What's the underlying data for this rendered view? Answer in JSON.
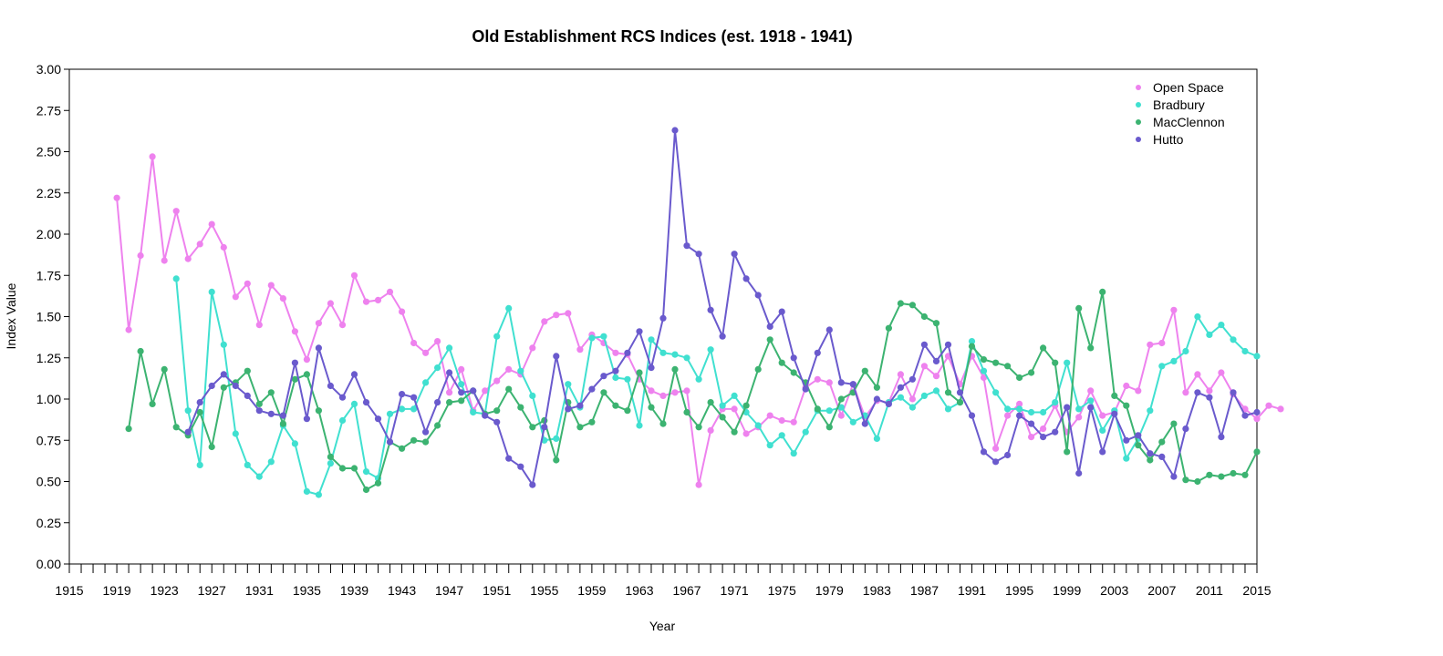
{
  "chart_data": {
    "type": "line",
    "title": "Old Establishment RCS Indices (est. 1918 - 1941)",
    "xlabel": "Year",
    "ylabel": "Index Value",
    "xlim": [
      1915,
      2015
    ],
    "ylim": [
      0,
      3
    ],
    "x_tick_labels": [
      "1915",
      "1919",
      "1923",
      "1927",
      "1931",
      "1935",
      "1939",
      "1943",
      "1947",
      "1951",
      "1955",
      "1959",
      "1963",
      "1967",
      "1971",
      "1975",
      "1979",
      "1983",
      "1987",
      "1991",
      "1995",
      "1999",
      "2003",
      "2007",
      "2011",
      "2015"
    ],
    "y_tick_labels": [
      "0.00",
      "0.25",
      "0.50",
      "0.75",
      "1.00",
      "1.25",
      "1.50",
      "1.75",
      "2.00",
      "2.25",
      "2.50",
      "2.75",
      "3.00"
    ],
    "legend_position": "top-right",
    "grid": false,
    "series": [
      {
        "name": "Open Space",
        "color": "#ee82ee",
        "x_start": 1919,
        "values": [
          2.22,
          1.42,
          1.87,
          2.47,
          1.84,
          2.14,
          1.85,
          1.94,
          2.06,
          1.92,
          1.62,
          1.7,
          1.45,
          1.69,
          1.61,
          1.41,
          1.24,
          1.46,
          1.58,
          1.45,
          1.75,
          1.59,
          1.6,
          1.65,
          1.53,
          1.34,
          1.28,
          1.35,
          1.04,
          1.18,
          0.93,
          1.05,
          1.11,
          1.18,
          1.15,
          1.31,
          1.47,
          1.51,
          1.52,
          1.3,
          1.39,
          1.34,
          1.28,
          1.27,
          1.12,
          1.05,
          1.02,
          1.04,
          1.05,
          0.48,
          0.81,
          0.94,
          0.94,
          0.79,
          0.83,
          0.9,
          0.87,
          0.86,
          1.07,
          1.12,
          1.1,
          0.9,
          1.09,
          0.89,
          0.99,
          0.98,
          1.15,
          1.0,
          1.2,
          1.14,
          1.26,
          1.09,
          1.26,
          1.13,
          0.7,
          0.9,
          0.97,
          0.77,
          0.82,
          0.96,
          0.8,
          0.89,
          1.05,
          0.9,
          0.92,
          1.08,
          1.05,
          1.33,
          1.34,
          1.54,
          1.04,
          1.15,
          1.05,
          1.16,
          1.03,
          0.94,
          0.88,
          0.96,
          0.94
        ]
      },
      {
        "name": "Bradbury",
        "color": "#40e0d0",
        "x_start": 1924,
        "values": [
          1.73,
          0.93,
          0.6,
          1.65,
          1.33,
          0.79,
          0.6,
          0.53,
          0.62,
          0.84,
          0.73,
          0.44,
          0.42,
          0.61,
          0.87,
          0.97,
          0.56,
          0.52,
          0.91,
          0.94,
          0.94,
          1.1,
          1.19,
          1.31,
          1.09,
          0.92,
          0.91,
          1.38,
          1.55,
          1.17,
          1.02,
          0.75,
          0.76,
          1.09,
          0.95,
          1.37,
          1.38,
          1.13,
          1.12,
          0.84,
          1.36,
          1.28,
          1.27,
          1.25,
          1.12,
          1.3,
          0.96,
          1.02,
          0.92,
          0.84,
          0.72,
          0.78,
          0.67,
          0.8,
          0.93,
          0.93,
          0.95,
          0.86,
          0.9,
          0.76,
          0.98,
          1.01,
          0.95,
          1.02,
          1.05,
          0.94,
          0.98,
          1.35,
          1.17,
          1.04,
          0.94,
          0.94,
          0.92,
          0.92,
          0.98,
          1.22,
          0.94,
          0.99,
          0.81,
          0.93,
          0.64,
          0.76,
          0.93,
          1.2,
          1.23,
          1.29,
          1.5,
          1.39,
          1.45,
          1.36,
          1.29,
          1.26
        ]
      },
      {
        "name": "MacClennon",
        "color": "#3cb371",
        "x_start": 1920,
        "values": [
          0.82,
          1.29,
          0.97,
          1.18,
          0.83,
          0.78,
          0.92,
          0.71,
          1.07,
          1.1,
          1.17,
          0.97,
          1.04,
          0.85,
          1.12,
          1.15,
          0.93,
          0.65,
          0.58,
          0.58,
          0.45,
          0.49,
          0.74,
          0.7,
          0.75,
          0.74,
          0.84,
          0.98,
          0.99,
          1.05,
          0.91,
          0.93,
          1.06,
          0.95,
          0.83,
          0.87,
          0.63,
          0.98,
          0.83,
          0.86,
          1.04,
          0.96,
          0.93,
          1.16,
          0.95,
          0.85,
          1.18,
          0.92,
          0.83,
          0.98,
          0.89,
          0.8,
          0.96,
          1.18,
          1.36,
          1.22,
          1.16,
          1.1,
          0.94,
          0.83,
          1.0,
          1.04,
          1.17,
          1.07,
          1.43,
          1.58,
          1.57,
          1.5,
          1.46,
          1.04,
          0.98,
          1.32,
          1.24,
          1.22,
          1.2,
          1.13,
          1.16,
          1.31,
          1.22,
          0.68,
          1.55,
          1.31,
          1.65,
          1.02,
          0.96,
          0.72,
          0.63,
          0.74,
          0.85,
          0.51,
          0.5,
          0.54,
          0.53,
          0.55,
          0.54,
          0.68
        ]
      },
      {
        "name": "Hutto",
        "color": "#6a5acd",
        "x_start": 1925,
        "values": [
          0.8,
          0.98,
          1.08,
          1.15,
          1.08,
          1.02,
          0.93,
          0.91,
          0.9,
          1.22,
          0.88,
          1.31,
          1.08,
          1.01,
          1.15,
          0.98,
          0.88,
          0.74,
          1.03,
          1.01,
          0.8,
          0.98,
          1.16,
          1.04,
          1.05,
          0.9,
          0.86,
          0.64,
          0.59,
          0.48,
          0.83,
          1.26,
          0.94,
          0.96,
          1.06,
          1.14,
          1.17,
          1.28,
          1.41,
          1.19,
          1.49,
          2.63,
          1.93,
          1.88,
          1.54,
          1.38,
          1.88,
          1.73,
          1.63,
          1.44,
          1.53,
          1.25,
          1.06,
          1.28,
          1.42,
          1.1,
          1.09,
          0.85,
          1.0,
          0.97,
          1.07,
          1.12,
          1.33,
          1.23,
          1.33,
          1.04,
          0.9,
          0.68,
          0.62,
          0.66,
          0.9,
          0.85,
          0.77,
          0.8,
          0.95,
          0.55,
          0.95,
          0.68,
          0.91,
          0.75,
          0.78,
          0.67,
          0.65,
          0.53,
          0.82,
          1.04,
          1.01,
          0.77,
          1.04,
          0.9,
          0.92
        ]
      }
    ]
  }
}
